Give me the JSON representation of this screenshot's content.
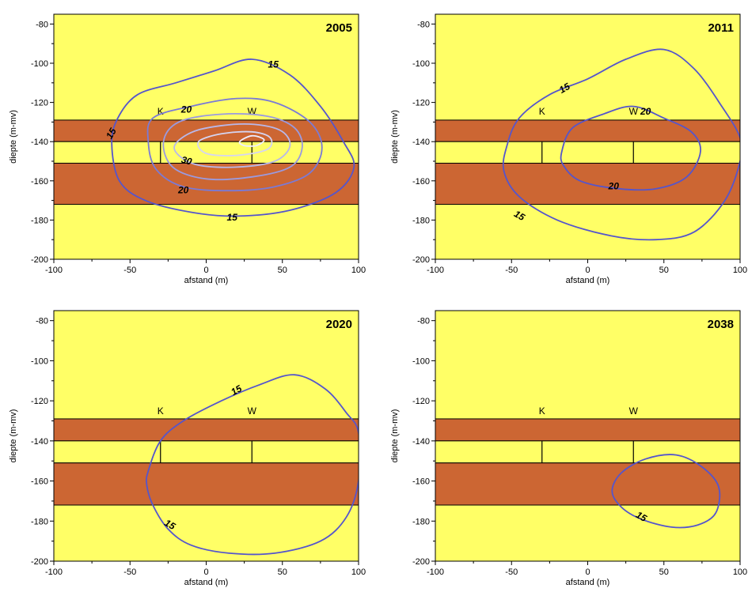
{
  "chart_data": [
    {
      "type": "contour",
      "year": "2005",
      "xlabel": "afstand (m)",
      "ylabel": "diepte (m-mv)",
      "xlim": [
        -100,
        100
      ],
      "ylim": [
        -200,
        -75
      ],
      "xticks": [
        "-100",
        "-50",
        "0",
        "50",
        "100"
      ],
      "yticks": [
        "-80",
        "-100",
        "-120",
        "-140",
        "-160",
        "-180",
        "-200"
      ],
      "layers": [
        {
          "type": "clay",
          "top": -129,
          "bottom": -140,
          "color": "#cc6633"
        },
        {
          "type": "sand",
          "top": -140,
          "bottom": -151,
          "color": "#ffff66"
        },
        {
          "type": "clay",
          "top": -151,
          "bottom": -172,
          "color": "#cc6633"
        }
      ],
      "wells": [
        {
          "label": "K",
          "x": -30,
          "screen_top": -140,
          "screen_bottom": -151
        },
        {
          "label": "W",
          "x": 30,
          "screen_top": -140,
          "screen_bottom": -151
        }
      ],
      "contours": [
        {
          "level": 15,
          "label": "15",
          "color": "#5555cc",
          "points": [
            [
              -62,
              -141
            ],
            [
              -58,
              -128
            ],
            [
              -45,
              -116
            ],
            [
              -20,
              -110
            ],
            [
              5,
              -104
            ],
            [
              30,
              -98
            ],
            [
              55,
              -106
            ],
            [
              75,
              -122
            ],
            [
              90,
              -140
            ],
            [
              97,
              -153
            ],
            [
              85,
              -166
            ],
            [
              55,
              -175
            ],
            [
              20,
              -178
            ],
            [
              -10,
              -176
            ],
            [
              -40,
              -170
            ],
            [
              -57,
              -160
            ]
          ]
        },
        {
          "level": 20,
          "label": "20",
          "color": "#7a7ad6",
          "points": [
            [
              -38,
              -140
            ],
            [
              -35,
              -128
            ],
            [
              -10,
              -122
            ],
            [
              20,
              -118
            ],
            [
              45,
              -120
            ],
            [
              68,
              -130
            ],
            [
              76,
              -143
            ],
            [
              68,
              -156
            ],
            [
              45,
              -163
            ],
            [
              15,
              -165
            ],
            [
              -15,
              -163
            ],
            [
              -33,
              -154
            ]
          ]
        },
        {
          "level": 25,
          "label": "",
          "color": "#9a9ae0",
          "points": [
            [
              -28,
              -140
            ],
            [
              -18,
              -130
            ],
            [
              10,
              -126
            ],
            [
              40,
              -127
            ],
            [
              58,
              -133
            ],
            [
              63,
              -143
            ],
            [
              55,
              -153
            ],
            [
              30,
              -158
            ],
            [
              0,
              -159
            ],
            [
              -22,
              -153
            ]
          ]
        },
        {
          "level": 30,
          "label": "30",
          "color": "#b8b8ea",
          "points": [
            [
              -20,
              -141
            ],
            [
              -5,
              -134
            ],
            [
              25,
              -131
            ],
            [
              48,
              -134
            ],
            [
              55,
              -142
            ],
            [
              45,
              -150
            ],
            [
              20,
              -153
            ],
            [
              -5,
              -152
            ],
            [
              -18,
              -147
            ]
          ]
        },
        {
          "level": 35,
          "label": "",
          "color": "#d4d4f2",
          "points": [
            [
              -5,
              -140
            ],
            [
              10,
              -136
            ],
            [
              30,
              -135
            ],
            [
              42,
              -138
            ],
            [
              40,
              -144
            ],
            [
              20,
              -147
            ],
            [
              0,
              -146
            ]
          ]
        },
        {
          "level": 40,
          "label": "",
          "color": "#eeeeff",
          "points": [
            [
              22,
              -140
            ],
            [
              30,
              -137
            ],
            [
              38,
              -139
            ],
            [
              33,
              -142
            ],
            [
              25,
              -142
            ]
          ]
        }
      ],
      "contour_labels": [
        {
          "text": "15",
          "x": 44,
          "y": -101,
          "rot": 0
        },
        {
          "text": "15",
          "x": -62,
          "y": -136,
          "rot": -60
        },
        {
          "text": "20",
          "x": -13,
          "y": -124,
          "rot": 0
        },
        {
          "text": "30",
          "x": -13,
          "y": -150,
          "rot": 15
        },
        {
          "text": "20",
          "x": -15,
          "y": -165,
          "rot": 0
        },
        {
          "text": "15",
          "x": 17,
          "y": -179,
          "rot": 0
        }
      ]
    },
    {
      "type": "contour",
      "year": "2011",
      "xlabel": "afstand (m)",
      "ylabel": "diepte (m-mv)",
      "xlim": [
        -100,
        100
      ],
      "ylim": [
        -200,
        -75
      ],
      "xticks": [
        "-100",
        "-50",
        "0",
        "50",
        "100"
      ],
      "yticks": [
        "-80",
        "-100",
        "-120",
        "-140",
        "-160",
        "-180",
        "-200"
      ],
      "layers": [
        {
          "type": "clay",
          "top": -129,
          "bottom": -140,
          "color": "#cc6633"
        },
        {
          "type": "sand",
          "top": -140,
          "bottom": -151,
          "color": "#ffff66"
        },
        {
          "type": "clay",
          "top": -151,
          "bottom": -172,
          "color": "#cc6633"
        }
      ],
      "wells": [
        {
          "label": "K",
          "x": -30,
          "screen_top": -140,
          "screen_bottom": -151
        },
        {
          "label": "W",
          "x": 30,
          "screen_top": -140,
          "screen_bottom": -151
        }
      ],
      "contours": [
        {
          "level": 15,
          "label": "15",
          "color": "#5555cc",
          "points": [
            [
              -53,
              -142
            ],
            [
              -45,
              -128
            ],
            [
              -25,
              -116
            ],
            [
              0,
              -108
            ],
            [
              25,
              -98
            ],
            [
              50,
              -93
            ],
            [
              70,
              -103
            ],
            [
              88,
              -122
            ],
            [
              100,
              -138
            ],
            [
              100,
              -150
            ],
            [
              90,
              -170
            ],
            [
              70,
              -186
            ],
            [
              45,
              -190
            ],
            [
              15,
              -188
            ],
            [
              -20,
              -180
            ],
            [
              -45,
              -168
            ],
            [
              -55,
              -155
            ]
          ]
        },
        {
          "level": 20,
          "label": "20",
          "color": "#5555cc",
          "points": [
            [
              -17,
              -145
            ],
            [
              -10,
              -133
            ],
            [
              10,
              -126
            ],
            [
              30,
              -122
            ],
            [
              50,
              -128
            ],
            [
              68,
              -135
            ],
            [
              74,
              -145
            ],
            [
              65,
              -158
            ],
            [
              45,
              -164
            ],
            [
              20,
              -164
            ],
            [
              -5,
              -160
            ],
            [
              -16,
              -152
            ]
          ]
        }
      ],
      "contour_labels": [
        {
          "text": "15",
          "x": -15,
          "y": -113,
          "rot": -30
        },
        {
          "text": "20",
          "x": 38,
          "y": -125,
          "rot": 0
        },
        {
          "text": "20",
          "x": 17,
          "y": -163,
          "rot": 0
        },
        {
          "text": "15",
          "x": -45,
          "y": -178,
          "rot": 30
        }
      ]
    },
    {
      "type": "contour",
      "year": "2020",
      "xlabel": "afstand (m)",
      "ylabel": "diepte (m-mv)",
      "xlim": [
        -100,
        100
      ],
      "ylim": [
        -200,
        -75
      ],
      "xticks": [
        "-100",
        "-50",
        "0",
        "50",
        "100"
      ],
      "yticks": [
        "-80",
        "-100",
        "-120",
        "-140",
        "-160",
        "-180",
        "-200"
      ],
      "layers": [
        {
          "type": "clay",
          "top": -129,
          "bottom": -140,
          "color": "#cc6633"
        },
        {
          "type": "sand",
          "top": -140,
          "bottom": -151,
          "color": "#ffff66"
        },
        {
          "type": "clay",
          "top": -151,
          "bottom": -172,
          "color": "#cc6633"
        }
      ],
      "wells": [
        {
          "label": "K",
          "x": -30,
          "screen_top": -140,
          "screen_bottom": -151
        },
        {
          "label": "W",
          "x": 30,
          "screen_top": -140,
          "screen_bottom": -151
        }
      ],
      "contours": [
        {
          "level": 15,
          "label": "15",
          "color": "#5555cc",
          "points": [
            [
              -38,
              -155
            ],
            [
              -30,
              -140
            ],
            [
              -15,
              -130
            ],
            [
              10,
              -120
            ],
            [
              35,
              -112
            ],
            [
              58,
              -107
            ],
            [
              78,
              -114
            ],
            [
              92,
              -126
            ],
            [
              100,
              -136
            ],
            [
              100,
              -160
            ],
            [
              92,
              -178
            ],
            [
              75,
              -190
            ],
            [
              45,
              -196
            ],
            [
              15,
              -196
            ],
            [
              -10,
              -192
            ],
            [
              -25,
              -184
            ],
            [
              -35,
              -172
            ],
            [
              -39,
              -162
            ]
          ]
        }
      ],
      "contour_labels": [
        {
          "text": "15",
          "x": 20,
          "y": -115,
          "rot": -30
        },
        {
          "text": "15",
          "x": -24,
          "y": -182,
          "rot": 30
        }
      ]
    },
    {
      "type": "contour",
      "year": "2038",
      "xlabel": "afstand (m)",
      "ylabel": "diepte (m-mv)",
      "xlim": [
        -100,
        100
      ],
      "ylim": [
        -200,
        -75
      ],
      "xticks": [
        "-100",
        "-50",
        "0",
        "50",
        "100"
      ],
      "yticks": [
        "-80",
        "-100",
        "-120",
        "-140",
        "-160",
        "-180",
        "-200"
      ],
      "layers": [
        {
          "type": "clay",
          "top": -129,
          "bottom": -140,
          "color": "#cc6633"
        },
        {
          "type": "sand",
          "top": -140,
          "bottom": -151,
          "color": "#ffff66"
        },
        {
          "type": "clay",
          "top": -151,
          "bottom": -172,
          "color": "#cc6633"
        }
      ],
      "wells": [
        {
          "label": "K",
          "x": -30,
          "screen_top": -140,
          "screen_bottom": -151
        },
        {
          "label": "W",
          "x": 30,
          "screen_top": -140,
          "screen_bottom": -151
        }
      ],
      "contours": [
        {
          "level": 15,
          "label": "15",
          "color": "#5555cc",
          "points": [
            [
              16,
              -165
            ],
            [
              22,
              -156
            ],
            [
              38,
              -149
            ],
            [
              58,
              -147
            ],
            [
              75,
              -153
            ],
            [
              86,
              -163
            ],
            [
              84,
              -176
            ],
            [
              72,
              -182
            ],
            [
              55,
              -183
            ],
            [
              35,
              -179
            ],
            [
              22,
              -173
            ]
          ]
        }
      ],
      "contour_labels": [
        {
          "text": "15",
          "x": 35,
          "y": -178,
          "rot": 30
        }
      ]
    }
  ]
}
